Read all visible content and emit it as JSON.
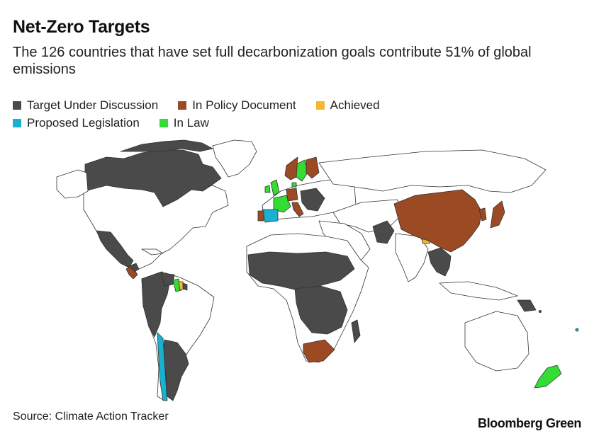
{
  "header": {
    "title": "Net-Zero Targets",
    "subtitle": "The 126 countries that have set full decarbonization goals contribute 51% of global emissions"
  },
  "legend": {
    "items": [
      {
        "label": "Target Under Discussion",
        "color": "#4a4a4a"
      },
      {
        "label": "In Policy Document",
        "color": "#9b4a24"
      },
      {
        "label": "Achieved",
        "color": "#f5b82e"
      },
      {
        "label": "Proposed Legislation",
        "color": "#1ab0d0"
      },
      {
        "label": "In Law",
        "color": "#33dd33"
      }
    ]
  },
  "map": {
    "land_color": "#ffffff",
    "border_color": "#333333"
  },
  "footer": {
    "source": "Source: Climate Action Tracker",
    "brand": "Bloomberg Green"
  }
}
